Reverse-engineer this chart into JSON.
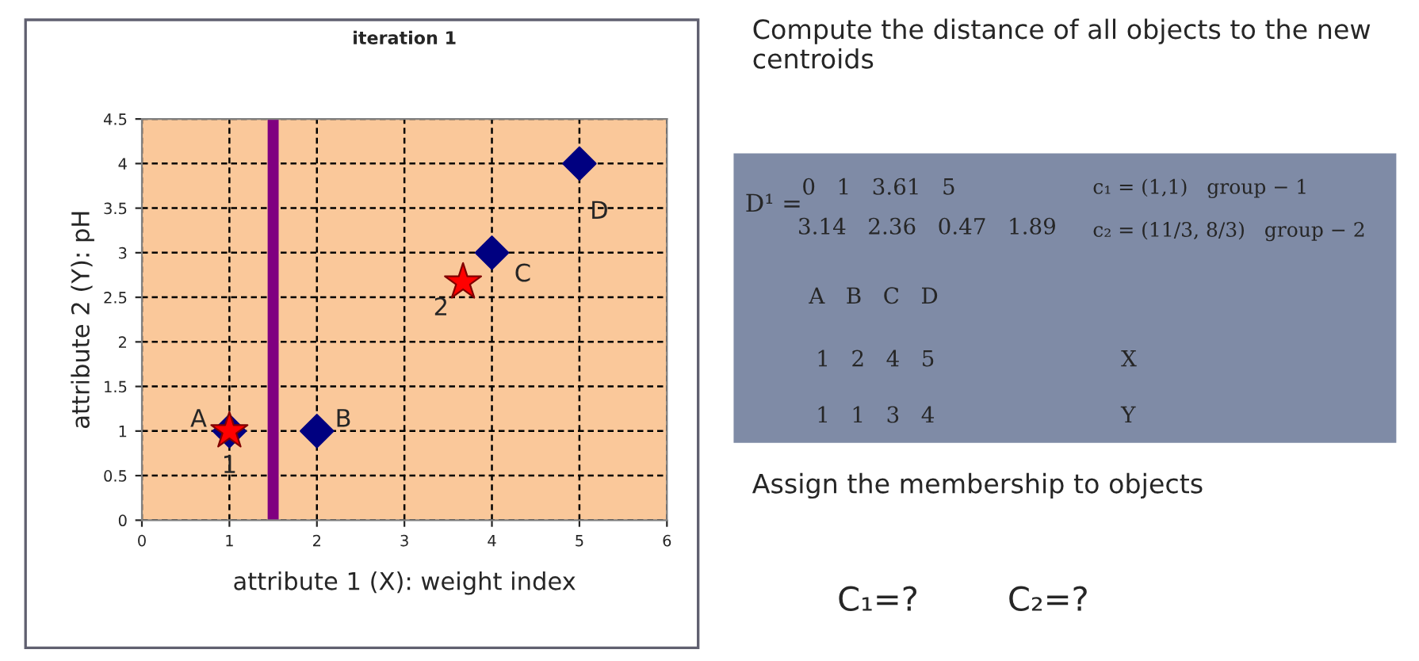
{
  "chart_data": {
    "type": "scatter",
    "title": "iteration 1",
    "xlabel": "attribute 1 (X): weight index",
    "ylabel": "attribute 2 (Y): pH",
    "series": [
      {
        "marker": "diamond",
        "color": "#000080",
        "x": [
          1,
          2,
          4,
          5
        ],
        "values": [
          1,
          1,
          3,
          4
        ]
      },
      {
        "marker": "star",
        "color": "#ff0000",
        "x": [
          1,
          3.67
        ],
        "values": [
          1,
          2.67
        ]
      }
    ],
    "xlim": [
      0,
      6
    ],
    "xticks": [
      0,
      1,
      2,
      3,
      4,
      5,
      6
    ],
    "ylim": [
      0,
      4.5
    ],
    "yticks": [
      0,
      0.5,
      1,
      1.5,
      2,
      2.5,
      3,
      3.5,
      4,
      4.5
    ],
    "grid": true,
    "ref_lines": [
      {
        "axis": "x",
        "value": 1.5,
        "color": "#800080"
      }
    ],
    "annotations": [
      {
        "text": "A",
        "x": 1,
        "y": 1
      },
      {
        "text": "B",
        "x": 2,
        "y": 1
      },
      {
        "text": "C",
        "x": 4,
        "y": 3
      },
      {
        "text": "D",
        "x": 5,
        "y": 4
      },
      {
        "text": "1",
        "x": 1,
        "y": 1
      },
      {
        "text": "2",
        "x": 3.67,
        "y": 2.67
      },
      "Compute the distance of all objects to the new centroids",
      "D¹ =",
      "0   1   3.61   5",
      "3.14   2.36   0.47   1.89",
      "c₁ = (1,1)   group − 1",
      "c₂ = (11/3, 8/3)   group − 2",
      "A   B   C   D",
      "1   2   4   5",
      "1   1   3   4",
      "X",
      "Y",
      "Assign the membership to objects",
      "C₁=?",
      "C₂=?"
    ]
  }
}
